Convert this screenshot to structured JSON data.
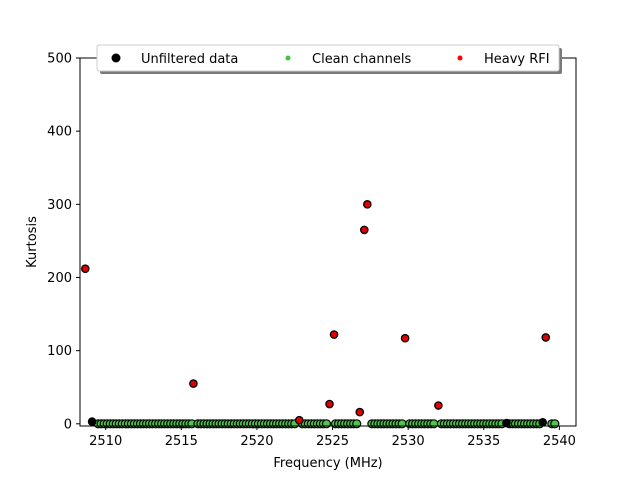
{
  "chart_data": {
    "type": "scatter",
    "xlabel": "Frequency (MHz)",
    "ylabel": "Kurtosis",
    "xlim": [
      2508.3,
      2541.1
    ],
    "ylim": [
      -3,
      500
    ],
    "xticks": [
      2510,
      2515,
      2520,
      2525,
      2530,
      2535,
      2540
    ],
    "yticks": [
      0,
      100,
      200,
      300,
      400,
      500
    ],
    "legend": {
      "placement": "top-center",
      "entries": [
        {
          "name": "Unfiltered data",
          "color": "#000000"
        },
        {
          "name": "Clean channels",
          "color": "#3ec43e"
        },
        {
          "name": "Heavy RFI",
          "color": "#ff0000"
        }
      ]
    },
    "colors": {
      "unfiltered_edge": "#000000",
      "clean": "#4cc74c",
      "rfi": "#e00000"
    },
    "clean_ranges": [
      {
        "start": 2509.5,
        "end": 2515.7
      },
      {
        "start": 2516.1,
        "end": 2522.6
      },
      {
        "start": 2523.0,
        "end": 2524.6
      },
      {
        "start": 2525.2,
        "end": 2526.6
      },
      {
        "start": 2527.6,
        "end": 2529.6
      },
      {
        "start": 2530.1,
        "end": 2531.8
      },
      {
        "start": 2532.2,
        "end": 2536.3
      },
      {
        "start": 2536.7,
        "end": 2538.7
      },
      {
        "start": 2539.5,
        "end": 2539.8
      }
    ],
    "clean_step": 0.2,
    "black_points": [
      {
        "x": 2509.1,
        "y": 3
      },
      {
        "x": 2536.5,
        "y": 1
      },
      {
        "x": 2538.9,
        "y": 2
      }
    ],
    "rfi_points": [
      {
        "x": 2508.65,
        "y": 212
      },
      {
        "x": 2515.8,
        "y": 55
      },
      {
        "x": 2522.8,
        "y": 5
      },
      {
        "x": 2524.8,
        "y": 27
      },
      {
        "x": 2525.1,
        "y": 122
      },
      {
        "x": 2526.8,
        "y": 16
      },
      {
        "x": 2527.1,
        "y": 265
      },
      {
        "x": 2527.3,
        "y": 300
      },
      {
        "x": 2529.8,
        "y": 117
      },
      {
        "x": 2532.0,
        "y": 25
      },
      {
        "x": 2539.1,
        "y": 118
      }
    ]
  }
}
